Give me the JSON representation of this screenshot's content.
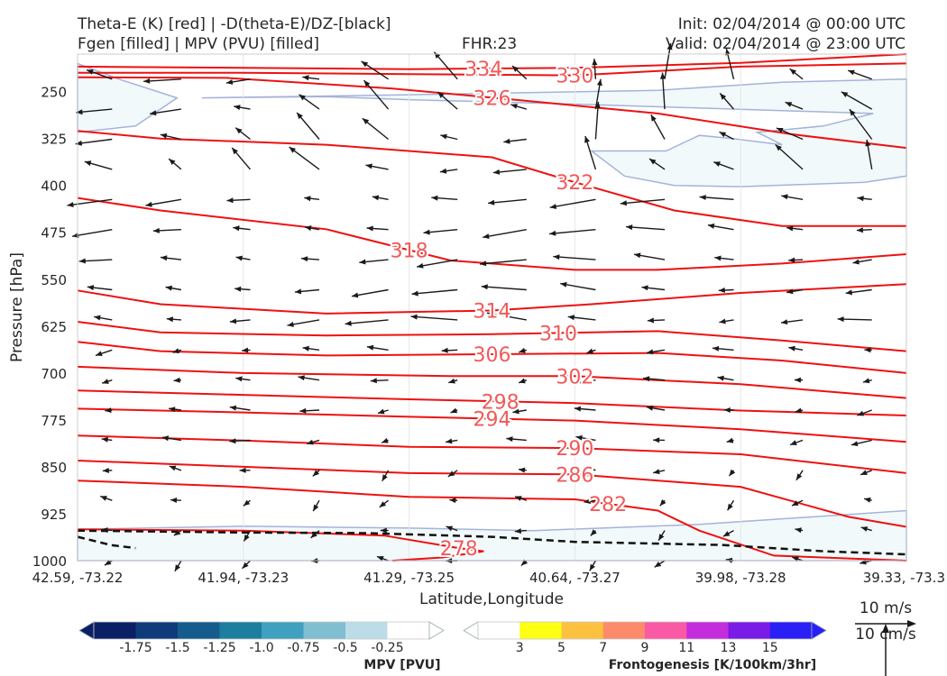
{
  "header": {
    "title_left_1": "Theta-E (K) [red] | -D(theta-E)/DZ-[black]",
    "title_left_2": "Fgen [filled] | MPV (PVU) [filled]",
    "fhr": "FHR:23",
    "init": "Init: 02/04/2014 @ 00:00 UTC",
    "valid": "Valid: 02/04/2014 @ 23:00 UTC"
  },
  "chart_data": {
    "type": "cross-section",
    "xlabel": "Latitude,Longitude",
    "ylabel": "Pressure [hPa]",
    "y_ticks": [
      250,
      325,
      400,
      475,
      550,
      625,
      700,
      775,
      850,
      925,
      1000
    ],
    "ylim": [
      1000,
      190
    ],
    "x_ticks": [
      "42.59, -73.22",
      "41.94, -73.23",
      "41.29, -73.25",
      "40.64, -73.27",
      "39.98, -73.28",
      "39.33, -73.3"
    ],
    "colors": {
      "theta_e": "#ee1111",
      "theta_e_label": "#f05a5a",
      "mpv_fill": "#f2f9fb",
      "mpv_edge": "#a4b3d8",
      "dtheta_dz": "#111111",
      "wind": "#1a1a1a"
    },
    "theta_e_contours": [
      {
        "value": 334,
        "label": "334",
        "label_x": 0.49,
        "points": [
          [
            0.0,
            210
          ],
          [
            0.2,
            212
          ],
          [
            0.4,
            214
          ],
          [
            0.6,
            212
          ],
          [
            0.8,
            204
          ],
          [
            1.0,
            190
          ]
        ]
      },
      {
        "value": 330,
        "label": "330",
        "label_x": 0.6,
        "points": [
          [
            0.0,
            220
          ],
          [
            0.2,
            220
          ],
          [
            0.4,
            222
          ],
          [
            0.6,
            224
          ],
          [
            0.8,
            210
          ],
          [
            1.0,
            205
          ]
        ]
      },
      {
        "value": 326,
        "label": "326",
        "label_x": 0.5,
        "points": [
          [
            0.0,
            227
          ],
          [
            0.18,
            228
          ],
          [
            0.38,
            245
          ],
          [
            0.52,
            262
          ],
          [
            0.7,
            285
          ],
          [
            0.86,
            318
          ],
          [
            1.0,
            340
          ]
        ]
      },
      {
        "value": 322,
        "label": "322",
        "label_x": 0.6,
        "points": [
          [
            0.0,
            313
          ],
          [
            0.1,
            325
          ],
          [
            0.3,
            335
          ],
          [
            0.5,
            355
          ],
          [
            0.6,
            395
          ],
          [
            0.72,
            440
          ],
          [
            0.85,
            465
          ],
          [
            1.0,
            465
          ]
        ]
      },
      {
        "value": 318,
        "label": "318",
        "label_x": 0.4,
        "points": [
          [
            0.0,
            420
          ],
          [
            0.1,
            440
          ],
          [
            0.3,
            470
          ],
          [
            0.45,
            520
          ],
          [
            0.6,
            535
          ],
          [
            0.7,
            535
          ],
          [
            0.85,
            525
          ],
          [
            1.0,
            510
          ]
        ]
      },
      {
        "value": 314,
        "label": "314",
        "label_x": 0.5,
        "points": [
          [
            0.0,
            568
          ],
          [
            0.1,
            590
          ],
          [
            0.3,
            605
          ],
          [
            0.5,
            600
          ],
          [
            0.62,
            590
          ],
          [
            0.8,
            572
          ],
          [
            1.0,
            558
          ]
        ]
      },
      {
        "value": 310,
        "label": "310",
        "label_x": 0.58,
        "points": [
          [
            0.0,
            618
          ],
          [
            0.1,
            635
          ],
          [
            0.3,
            640
          ],
          [
            0.5,
            638
          ],
          [
            0.7,
            633
          ],
          [
            0.85,
            648
          ],
          [
            1.0,
            665
          ]
        ]
      },
      {
        "value": 306,
        "label": "306",
        "label_x": 0.5,
        "points": [
          [
            0.0,
            650
          ],
          [
            0.1,
            665
          ],
          [
            0.3,
            672
          ],
          [
            0.5,
            670
          ],
          [
            0.7,
            668
          ],
          [
            0.85,
            680
          ],
          [
            1.0,
            700
          ]
        ]
      },
      {
        "value": 302,
        "label": "302",
        "label_x": 0.6,
        "points": [
          [
            0.0,
            690
          ],
          [
            0.2,
            700
          ],
          [
            0.45,
            705
          ],
          [
            0.6,
            705
          ],
          [
            0.8,
            718
          ],
          [
            1.0,
            740
          ]
        ]
      },
      {
        "value": 298,
        "label": "298",
        "label_x": 0.51,
        "points": [
          [
            0.0,
            728
          ],
          [
            0.2,
            735
          ],
          [
            0.4,
            742
          ],
          [
            0.6,
            748
          ],
          [
            0.8,
            760
          ],
          [
            1.0,
            768
          ]
        ]
      },
      {
        "value": 294,
        "label": "294",
        "label_x": 0.5,
        "points": [
          [
            0.0,
            757
          ],
          [
            0.2,
            763
          ],
          [
            0.4,
            770
          ],
          [
            0.6,
            776
          ],
          [
            0.8,
            790
          ],
          [
            1.0,
            810
          ]
        ]
      },
      {
        "value": 290,
        "label": "290",
        "label_x": 0.6,
        "points": [
          [
            0.0,
            800
          ],
          [
            0.2,
            808
          ],
          [
            0.4,
            818
          ],
          [
            0.6,
            820
          ],
          [
            0.8,
            830
          ],
          [
            1.0,
            860
          ]
        ]
      },
      {
        "value": 286,
        "label": "286",
        "label_x": 0.6,
        "points": [
          [
            0.0,
            840
          ],
          [
            0.2,
            850
          ],
          [
            0.4,
            860
          ],
          [
            0.6,
            862
          ],
          [
            0.8,
            882
          ],
          [
            0.93,
            930
          ],
          [
            1.0,
            946
          ]
        ]
      },
      {
        "value": 282,
        "label": "282",
        "label_x": 0.64,
        "points": [
          [
            0.0,
            872
          ],
          [
            0.2,
            882
          ],
          [
            0.4,
            898
          ],
          [
            0.6,
            902
          ],
          [
            0.7,
            920
          ],
          [
            0.75,
            952
          ],
          [
            0.84,
            992
          ],
          [
            1.0,
            1000
          ]
        ]
      },
      {
        "value": 278,
        "label": "278",
        "label_x": 0.46,
        "points": [
          [
            0.0,
            950
          ],
          [
            0.2,
            952
          ],
          [
            0.37,
            960
          ],
          [
            0.46,
            980
          ],
          [
            0.49,
            985
          ],
          [
            0.44,
            995
          ],
          [
            0.38,
            1000
          ]
        ]
      }
    ],
    "mpv_regions": [
      {
        "value": -0.25,
        "points": [
          [
            0.0,
            205
          ],
          [
            0.05,
            230
          ],
          [
            0.12,
            260
          ],
          [
            0.07,
            305
          ],
          [
            0.0,
            315
          ]
        ]
      },
      {
        "value": -0.25,
        "points": [
          [
            0.15,
            260
          ],
          [
            0.4,
            255
          ],
          [
            0.7,
            248
          ],
          [
            0.85,
            235
          ],
          [
            1.0,
            230
          ],
          [
            1.0,
            385
          ],
          [
            0.95,
            395
          ],
          [
            0.8,
            402
          ],
          [
            0.72,
            400
          ],
          [
            0.66,
            385
          ],
          [
            0.62,
            345
          ],
          [
            0.71,
            345
          ],
          [
            0.75,
            320
          ],
          [
            0.79,
            325
          ],
          [
            0.85,
            335
          ],
          [
            0.82,
            315
          ],
          [
            0.9,
            305
          ],
          [
            0.96,
            285
          ],
          [
            0.6,
            270
          ],
          [
            0.4,
            263
          ],
          [
            0.3,
            258
          ]
        ]
      },
      {
        "value": -0.25,
        "points": [
          [
            0.0,
            950
          ],
          [
            0.2,
            945
          ],
          [
            0.4,
            948
          ],
          [
            0.55,
            952
          ],
          [
            0.75,
            942
          ],
          [
            1.0,
            920
          ],
          [
            1.0,
            1000
          ],
          [
            0.0,
            1000
          ]
        ]
      }
    ],
    "dtheta_dz_contours": [
      {
        "points": [
          [
            0.0,
            952
          ],
          [
            0.2,
            955
          ],
          [
            0.35,
            956
          ],
          [
            0.5,
            962
          ],
          [
            0.6,
            970
          ],
          [
            0.78,
            975
          ],
          [
            0.9,
            985
          ],
          [
            1.0,
            990
          ]
        ]
      },
      {
        "points": [
          [
            0.0,
            962
          ],
          [
            0.04,
            975
          ],
          [
            0.07,
            980
          ]
        ]
      }
    ],
    "wind_scale": {
      "label_top": "10 m/s",
      "label_bottom": "10 cm/s"
    },
    "mpv_colorbar": {
      "label": "MPV [PVU]",
      "ticks": [
        "-1.75",
        "-1.5",
        "-1.25",
        "-1.0",
        "-0.75",
        "-0.5",
        "-0.25"
      ],
      "colors": [
        "#0b1f65",
        "#0f3b7a",
        "#155c8c",
        "#1d7ea0",
        "#3fa0bf",
        "#80bed2",
        "#bcdde7",
        "#ffffff"
      ]
    },
    "fgen_colorbar": {
      "label": "Frontogenesis [K/100km/3hr]",
      "ticks": [
        "3",
        "5",
        "7",
        "9",
        "11",
        "13",
        "15"
      ],
      "colors": [
        "#ffffff",
        "#ffff14",
        "#fcc13f",
        "#fb8b6b",
        "#fa5aa5",
        "#c42ddb",
        "#7a1be6",
        "#2a1ff4"
      ]
    }
  }
}
